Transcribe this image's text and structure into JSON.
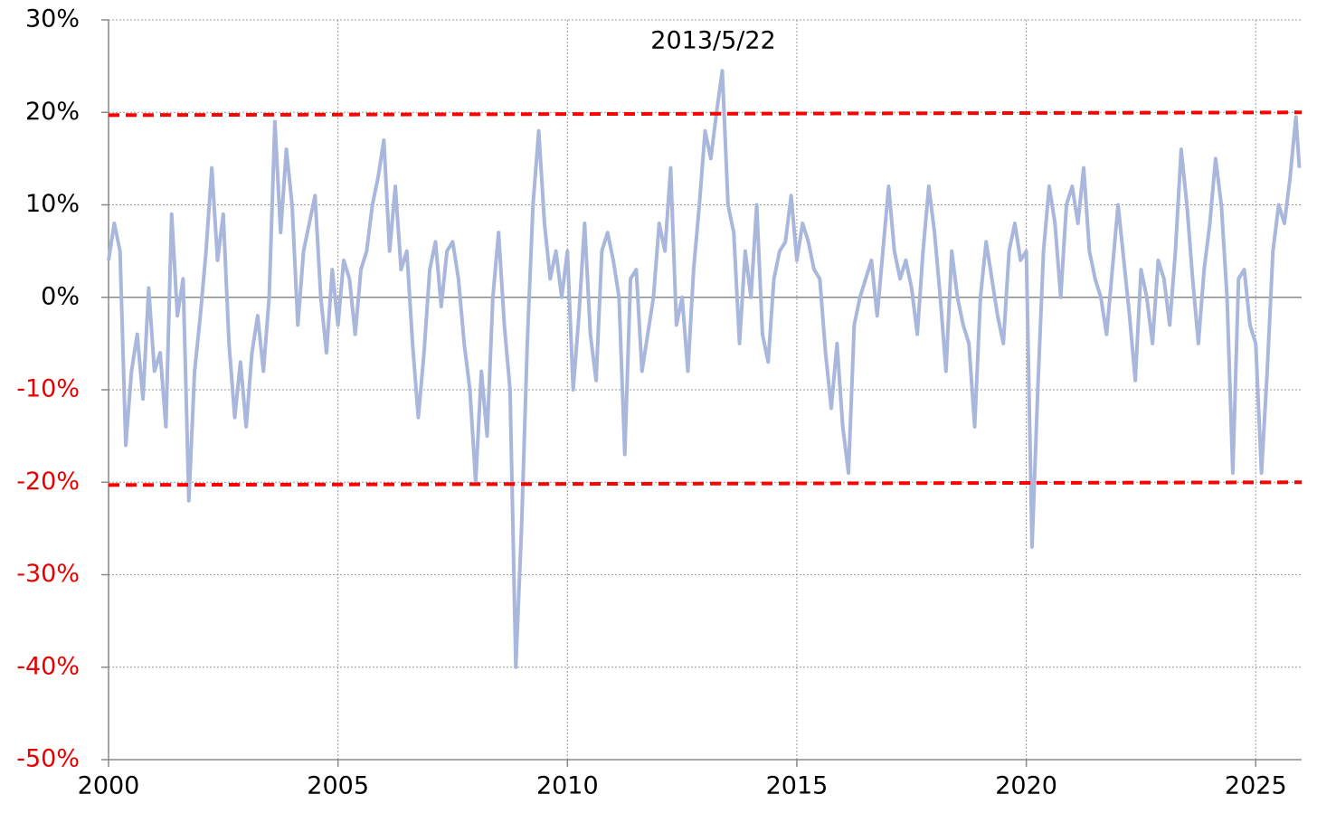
{
  "chart_data": {
    "type": "line",
    "annotations": [
      "2013/5/22"
    ],
    "x": [
      2000,
      2000.125,
      2000.25,
      2000.375,
      2000.5,
      2000.625,
      2000.75,
      2000.875,
      2001,
      2001.125,
      2001.25,
      2001.375,
      2001.5,
      2001.625,
      2001.75,
      2001.875,
      2002,
      2002.125,
      2002.25,
      2002.375,
      2002.5,
      2002.625,
      2002.75,
      2002.875,
      2003,
      2003.125,
      2003.25,
      2003.375,
      2003.5,
      2003.625,
      2003.75,
      2003.875,
      2004,
      2004.125,
      2004.25,
      2004.375,
      2004.5,
      2004.625,
      2004.75,
      2004.875,
      2005,
      2005.125,
      2005.25,
      2005.375,
      2005.5,
      2005.625,
      2005.75,
      2005.875,
      2006,
      2006.125,
      2006.25,
      2006.375,
      2006.5,
      2006.625,
      2006.75,
      2006.875,
      2007,
      2007.125,
      2007.25,
      2007.375,
      2007.5,
      2007.625,
      2007.75,
      2007.875,
      2008,
      2008.125,
      2008.25,
      2008.375,
      2008.5,
      2008.625,
      2008.75,
      2008.875,
      2009,
      2009.125,
      2009.25,
      2009.375,
      2009.5,
      2009.625,
      2009.75,
      2009.875,
      2010,
      2010.125,
      2010.25,
      2010.375,
      2010.5,
      2010.625,
      2010.75,
      2010.875,
      2011,
      2011.125,
      2011.25,
      2011.375,
      2011.5,
      2011.625,
      2011.75,
      2011.875,
      2012,
      2012.125,
      2012.25,
      2012.375,
      2012.5,
      2012.625,
      2012.75,
      2012.875,
      2013,
      2013.125,
      2013.25,
      2013.375,
      2013.5,
      2013.625,
      2013.75,
      2013.875,
      2014,
      2014.125,
      2014.25,
      2014.375,
      2014.5,
      2014.625,
      2014.75,
      2014.875,
      2015,
      2015.125,
      2015.25,
      2015.375,
      2015.5,
      2015.625,
      2015.75,
      2015.875,
      2016,
      2016.125,
      2016.25,
      2016.375,
      2016.5,
      2016.625,
      2016.75,
      2016.875,
      2017,
      2017.125,
      2017.25,
      2017.375,
      2017.5,
      2017.625,
      2017.75,
      2017.875,
      2018,
      2018.125,
      2018.25,
      2018.375,
      2018.5,
      2018.625,
      2018.75,
      2018.875,
      2019,
      2019.125,
      2019.25,
      2019.375,
      2019.5,
      2019.625,
      2019.75,
      2019.875,
      2020,
      2020.125,
      2020.25,
      2020.375,
      2020.5,
      2020.625,
      2020.75,
      2020.875,
      2021,
      2021.125,
      2021.25,
      2021.375,
      2021.5,
      2021.625,
      2021.75,
      2021.875,
      2022,
      2022.125,
      2022.25,
      2022.375,
      2022.5,
      2022.625,
      2022.75,
      2022.875,
      2023,
      2023.125,
      2023.25,
      2023.375,
      2023.5,
      2023.625,
      2023.75,
      2023.875,
      2024,
      2024.125,
      2024.25,
      2024.375,
      2024.5,
      2024.625,
      2024.75,
      2024.875,
      2025,
      2025.125,
      2025.25,
      2025.375,
      2025.5,
      2025.625,
      2025.75,
      2025.875,
      2025.95
    ],
    "series": [
      {
        "color": "#a9b7dd",
        "values": [
          4,
          8,
          5,
          -16,
          -8,
          -4,
          -11,
          1,
          -8,
          -6,
          -14,
          9,
          -2,
          2,
          -22,
          -8,
          -2,
          5,
          14,
          4,
          9,
          -5,
          -13,
          -7,
          -14,
          -6,
          -2,
          -8,
          0,
          19,
          7,
          16,
          10,
          -3,
          5,
          8,
          11,
          0,
          -6,
          3,
          -3,
          4,
          2,
          -4,
          3,
          5,
          10,
          13,
          17,
          5,
          12,
          3,
          5,
          -5,
          -13,
          -6,
          3,
          6,
          -1,
          5,
          6,
          2,
          -5,
          -10,
          -20,
          -8,
          -15,
          0,
          7,
          -3,
          -10,
          -40,
          -25,
          -5,
          10,
          18,
          8,
          2,
          5,
          0,
          5,
          -10,
          -2,
          8,
          -4,
          -9,
          5,
          7,
          4,
          0,
          -17,
          2,
          3,
          -8,
          -4,
          0,
          8,
          5,
          14,
          -3,
          0,
          -8,
          3,
          10,
          18,
          15,
          20,
          24.5,
          10,
          7,
          -5,
          5,
          0,
          10,
          -4,
          -7,
          2,
          5,
          6,
          11,
          4,
          8,
          6,
          3,
          2,
          -6,
          -12,
          -5,
          -14,
          -19,
          -3,
          0,
          2,
          4,
          -2,
          5,
          12,
          5,
          2,
          4,
          1,
          -4,
          5,
          12,
          7,
          0,
          -8,
          5,
          0,
          -3,
          -5,
          -14,
          0,
          6,
          2,
          -2,
          -5,
          5,
          8,
          4,
          5,
          -27,
          -10,
          5,
          12,
          8,
          0,
          10,
          12,
          8,
          14,
          5,
          2,
          0,
          -4,
          3,
          10,
          4,
          -2,
          -9,
          3,
          0,
          -5,
          4,
          2,
          -3,
          5,
          16,
          10,
          2,
          -5,
          3,
          8,
          15,
          10,
          0,
          -19,
          2,
          3,
          -3,
          -5,
          -19,
          -8,
          5,
          10,
          8,
          13,
          19.5,
          14
        ]
      }
    ],
    "reference_lines": [
      {
        "x": [
          2000,
          2026
        ],
        "values": [
          19.7,
          20
        ],
        "color": "#ff0000",
        "dashed": true
      },
      {
        "x": [
          2000,
          2026
        ],
        "values": [
          -20.3,
          -20
        ],
        "color": "#ff0000",
        "dashed": true
      }
    ],
    "xlim": [
      2000,
      2026
    ],
    "xticks": [
      2000,
      2005,
      2010,
      2015,
      2020,
      2025
    ],
    "ylim": [
      -50,
      30
    ],
    "yticks": [
      {
        "value": -50,
        "label": "-50%"
      },
      {
        "value": -40,
        "label": "-40%"
      },
      {
        "value": -30,
        "label": "-30%"
      },
      {
        "value": -20,
        "label": "-20%"
      },
      {
        "value": -10,
        "label": "-10%"
      },
      {
        "value": 0,
        "label": "0%"
      },
      {
        "value": 10,
        "label": "10%"
      },
      {
        "value": 20,
        "label": "20%"
      },
      {
        "value": 30,
        "label": "30%"
      }
    ],
    "negative_tick_color": "#e60000",
    "grid": true
  }
}
